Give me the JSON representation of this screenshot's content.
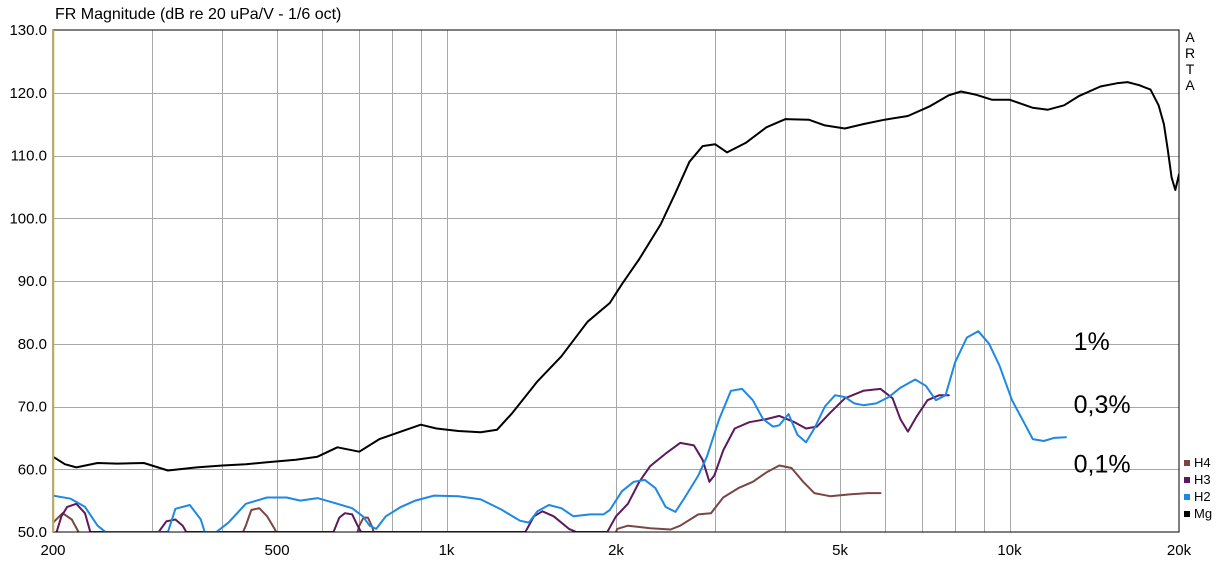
{
  "chart_data": {
    "type": "line",
    "title": "FR Magnitude (dB re 20 uPa/V - 1/6 oct)",
    "x_scale": "log",
    "xlim": [
      200,
      20000
    ],
    "ylim": [
      50,
      130
    ],
    "grid": true,
    "legend_position": "right",
    "brand": [
      "A",
      "R",
      "T",
      "A"
    ],
    "y_ticks": [
      "130.0",
      "120.0",
      "110.0",
      "100.0",
      "90.0",
      "80.0",
      "70.0",
      "60.0",
      "50.0"
    ],
    "x_ticks": [
      {
        "value": 200,
        "label": "200"
      },
      {
        "value": 500,
        "label": "500"
      },
      {
        "value": 1000,
        "label": "1k"
      },
      {
        "value": 2000,
        "label": "2k"
      },
      {
        "value": 5000,
        "label": "5k"
      },
      {
        "value": 10000,
        "label": "10k"
      },
      {
        "value": 20000,
        "label": "20k"
      }
    ],
    "annotations": [
      {
        "text": "1%",
        "x": 13000,
        "y": 79
      },
      {
        "text": "0,3%",
        "x": 13000,
        "y": 69
      },
      {
        "text": "0,1%",
        "x": 13000,
        "y": 59.5
      }
    ],
    "series": [
      {
        "name": "H4",
        "color": "#7b4545",
        "points": [
          [
            200,
            51.5
          ],
          [
            208,
            53
          ],
          [
            216,
            52
          ],
          [
            222,
            50
          ],
          [
            226,
            49
          ],
          [
            430,
            49
          ],
          [
            440,
            51
          ],
          [
            450,
            53.5
          ],
          [
            465,
            53.8
          ],
          [
            480,
            52.5
          ],
          [
            495,
            50.5
          ],
          [
            505,
            49
          ],
          [
            690,
            49
          ],
          [
            700,
            51
          ],
          [
            712,
            52.3
          ],
          [
            725,
            52.3
          ],
          [
            738,
            50.8
          ],
          [
            748,
            49
          ],
          [
            1990,
            49.5
          ],
          [
            2010,
            50.5
          ],
          [
            2100,
            51
          ],
          [
            2300,
            50.6
          ],
          [
            2500,
            50.4
          ],
          [
            2600,
            51
          ],
          [
            2800,
            52.8
          ],
          [
            2950,
            53
          ],
          [
            3100,
            55.5
          ],
          [
            3300,
            57
          ],
          [
            3500,
            58
          ],
          [
            3700,
            59.5
          ],
          [
            3900,
            60.6
          ],
          [
            4100,
            60.2
          ],
          [
            4300,
            58
          ],
          [
            4500,
            56.2
          ],
          [
            4800,
            55.7
          ],
          [
            5200,
            56
          ],
          [
            5600,
            56.2
          ],
          [
            5900,
            56.2
          ]
        ]
      },
      {
        "name": "H3",
        "color": "#5c1a5c",
        "points": [
          [
            203,
            50
          ],
          [
            207,
            52.5
          ],
          [
            212,
            54
          ],
          [
            220,
            54.5
          ],
          [
            228,
            53
          ],
          [
            233,
            50
          ],
          [
            308,
            50
          ],
          [
            318,
            51.7
          ],
          [
            330,
            52
          ],
          [
            340,
            51
          ],
          [
            345,
            50
          ],
          [
            630,
            50
          ],
          [
            645,
            52.3
          ],
          [
            660,
            53
          ],
          [
            680,
            52.8
          ],
          [
            695,
            51
          ],
          [
            705,
            50
          ],
          [
            1380,
            50
          ],
          [
            1430,
            52.5
          ],
          [
            1480,
            53.3
          ],
          [
            1550,
            52.5
          ],
          [
            1650,
            50.5
          ],
          [
            1700,
            50
          ],
          [
            1930,
            50
          ],
          [
            2000,
            52.5
          ],
          [
            2100,
            54.5
          ],
          [
            2200,
            58
          ],
          [
            2300,
            60.5
          ],
          [
            2450,
            62.5
          ],
          [
            2600,
            64.2
          ],
          [
            2750,
            63.8
          ],
          [
            2850,
            61.5
          ],
          [
            2930,
            58
          ],
          [
            2990,
            59
          ],
          [
            3100,
            63
          ],
          [
            3250,
            66.5
          ],
          [
            3450,
            67.5
          ],
          [
            3700,
            68
          ],
          [
            3900,
            68.5
          ],
          [
            4150,
            67.5
          ],
          [
            4350,
            66.5
          ],
          [
            4550,
            66.8
          ],
          [
            4800,
            69
          ],
          [
            5100,
            71.3
          ],
          [
            5500,
            72.5
          ],
          [
            5900,
            72.8
          ],
          [
            6200,
            71.3
          ],
          [
            6400,
            68
          ],
          [
            6600,
            66
          ],
          [
            6850,
            68.5
          ],
          [
            7150,
            71
          ],
          [
            7500,
            71.8
          ],
          [
            7800,
            71.8
          ]
        ]
      },
      {
        "name": "H2",
        "color": "#1e88e5",
        "points": [
          [
            200,
            55.8
          ],
          [
            215,
            55.3
          ],
          [
            228,
            54
          ],
          [
            240,
            51
          ],
          [
            248,
            50
          ],
          [
            320,
            50
          ],
          [
            330,
            53.7
          ],
          [
            350,
            54.3
          ],
          [
            366,
            52
          ],
          [
            372,
            50
          ],
          [
            390,
            50
          ],
          [
            410,
            51.5
          ],
          [
            440,
            54.5
          ],
          [
            480,
            55.5
          ],
          [
            520,
            55.5
          ],
          [
            550,
            55
          ],
          [
            590,
            55.4
          ],
          [
            640,
            54.5
          ],
          [
            680,
            53.8
          ],
          [
            710,
            52.5
          ],
          [
            730,
            51
          ],
          [
            750,
            50.5
          ],
          [
            780,
            52.5
          ],
          [
            830,
            54
          ],
          [
            880,
            55
          ],
          [
            950,
            55.8
          ],
          [
            1050,
            55.7
          ],
          [
            1150,
            55.2
          ],
          [
            1250,
            53.6
          ],
          [
            1350,
            51.8
          ],
          [
            1400,
            51.5
          ],
          [
            1450,
            53.3
          ],
          [
            1520,
            54.3
          ],
          [
            1600,
            53.8
          ],
          [
            1680,
            52.5
          ],
          [
            1800,
            52.8
          ],
          [
            1900,
            52.8
          ],
          [
            1950,
            53.5
          ],
          [
            2050,
            56.5
          ],
          [
            2150,
            58
          ],
          [
            2250,
            58.3
          ],
          [
            2350,
            57
          ],
          [
            2450,
            54
          ],
          [
            2550,
            53.2
          ],
          [
            2650,
            55.5
          ],
          [
            2800,
            59
          ],
          [
            2900,
            62
          ],
          [
            3050,
            68
          ],
          [
            3200,
            72.5
          ],
          [
            3350,
            72.8
          ],
          [
            3500,
            71
          ],
          [
            3650,
            68
          ],
          [
            3800,
            66.8
          ],
          [
            3900,
            67
          ],
          [
            4050,
            68.8
          ],
          [
            4200,
            65.5
          ],
          [
            4350,
            64.3
          ],
          [
            4500,
            66.5
          ],
          [
            4700,
            70
          ],
          [
            4900,
            71.8
          ],
          [
            5100,
            71.5
          ],
          [
            5300,
            70.5
          ],
          [
            5500,
            70.2
          ],
          [
            5800,
            70.5
          ],
          [
            6100,
            71.5
          ],
          [
            6400,
            73
          ],
          [
            6800,
            74.3
          ],
          [
            7100,
            73.3
          ],
          [
            7400,
            71
          ],
          [
            7700,
            71.8
          ],
          [
            8000,
            77
          ],
          [
            8400,
            81
          ],
          [
            8800,
            82
          ],
          [
            9200,
            80
          ],
          [
            9600,
            76.5
          ],
          [
            10100,
            71
          ],
          [
            10600,
            67.5
          ],
          [
            11000,
            64.8
          ],
          [
            11500,
            64.5
          ],
          [
            12000,
            65
          ],
          [
            12600,
            65.1
          ]
        ]
      },
      {
        "name": "Mg",
        "color": "#000000",
        "points": [
          [
            200,
            62
          ],
          [
            210,
            60.8
          ],
          [
            220,
            60.3
          ],
          [
            240,
            61
          ],
          [
            260,
            60.9
          ],
          [
            290,
            61
          ],
          [
            320,
            59.8
          ],
          [
            360,
            60.3
          ],
          [
            400,
            60.6
          ],
          [
            440,
            60.8
          ],
          [
            480,
            61.1
          ],
          [
            540,
            61.5
          ],
          [
            590,
            62
          ],
          [
            640,
            63.5
          ],
          [
            700,
            62.8
          ],
          [
            760,
            64.8
          ],
          [
            830,
            66
          ],
          [
            900,
            67.1
          ],
          [
            960,
            66.5
          ],
          [
            1050,
            66.1
          ],
          [
            1150,
            65.9
          ],
          [
            1230,
            66.3
          ],
          [
            1310,
            69
          ],
          [
            1450,
            74
          ],
          [
            1600,
            78
          ],
          [
            1780,
            83.5
          ],
          [
            1950,
            86.5
          ],
          [
            2050,
            89.5
          ],
          [
            2200,
            93.5
          ],
          [
            2400,
            99
          ],
          [
            2550,
            104
          ],
          [
            2700,
            109
          ],
          [
            2850,
            111.5
          ],
          [
            3000,
            111.8
          ],
          [
            3150,
            110.5
          ],
          [
            3400,
            112
          ],
          [
            3700,
            114.5
          ],
          [
            4000,
            115.8
          ],
          [
            4400,
            115.7
          ],
          [
            4700,
            114.8
          ],
          [
            5100,
            114.3
          ],
          [
            5500,
            115
          ],
          [
            6000,
            115.7
          ],
          [
            6600,
            116.3
          ],
          [
            7200,
            117.8
          ],
          [
            7800,
            119.6
          ],
          [
            8200,
            120.2
          ],
          [
            8700,
            119.7
          ],
          [
            9300,
            118.9
          ],
          [
            10000,
            118.9
          ],
          [
            11000,
            117.6
          ],
          [
            11700,
            117.3
          ],
          [
            12500,
            118
          ],
          [
            13300,
            119.5
          ],
          [
            14500,
            121
          ],
          [
            15500,
            121.5
          ],
          [
            16200,
            121.7
          ],
          [
            17000,
            121.2
          ],
          [
            17800,
            120.5
          ],
          [
            18400,
            118
          ],
          [
            18800,
            115
          ],
          [
            19100,
            111
          ],
          [
            19400,
            106.5
          ],
          [
            19700,
            104.5
          ],
          [
            20000,
            107
          ]
        ]
      }
    ]
  }
}
